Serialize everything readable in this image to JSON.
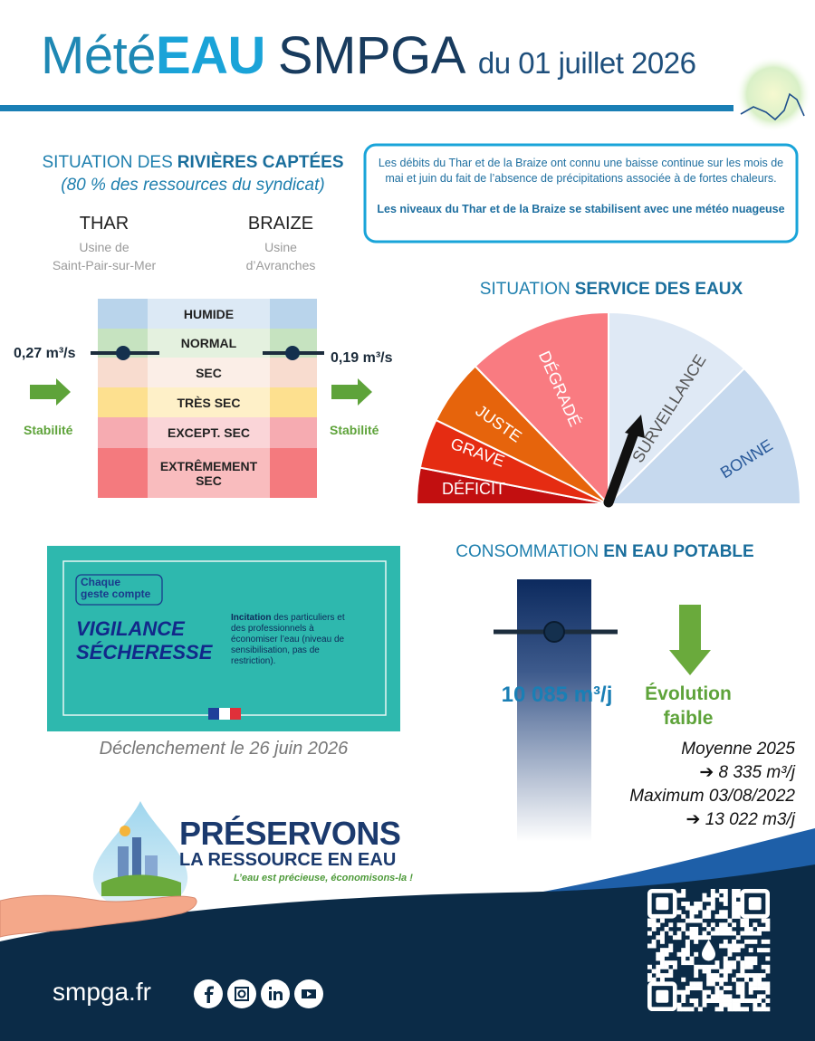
{
  "header": {
    "title_part1": "Mété",
    "title_part2": "EAU",
    "title_part3": "SMPGA",
    "date": "du 01 juillet 2026"
  },
  "rivers": {
    "title_part1": "SITUATION DES",
    "title_part2": "RIVIÈRES CAPTÉES",
    "subtitle": "(80 % des ressources du syndicat)",
    "stations": [
      {
        "name": "THAR",
        "plant": [
          "Usine de",
          "Saint-Pair-sur-Mer"
        ],
        "flow": "0,27 m³/s",
        "trend": "Stabilité"
      },
      {
        "name": "BRAIZE",
        "plant": [
          "Usine",
          "d’Avranches"
        ],
        "flow": "0,19 m³/s",
        "trend": "Stabilité"
      }
    ],
    "levels": [
      "HUMIDE",
      "NORMAL",
      "SEC",
      "TRÈS SEC",
      "EXCEPT. SEC",
      "EXTRÊMEMENT SEC"
    ]
  },
  "info": {
    "paragraph1": "Les débits du Thar et de la Braize ont connu une baisse continue sur les mois de mai et juin du fait de l’absence de précipitations associée à de fortes chaleurs.",
    "paragraph2": "Les niveaux du Thar et de la Braize se stabilisent avec une météo nuageuse"
  },
  "service": {
    "title_part1": "SITUATION",
    "title_part2": "SERVICE DES EAUX",
    "levels": [
      "DÉFICIT",
      "GRAVE",
      "JUSTE",
      "DÉGRADÉ",
      "SURVEILLANCE",
      "BONNE"
    ]
  },
  "consumption": {
    "title_part1": "CONSOMMATION",
    "title_part2": "EN EAU POTABLE",
    "current": "10 085 m³/j",
    "trend": [
      "Évolution",
      "faible"
    ],
    "references": [
      "Moyenne 2025",
      "➔ 8 335 m³/j",
      "Maximum 03/08/2022",
      "➔ 13 022 m3/j"
    ]
  },
  "vigilance": {
    "badge": [
      "Chaque",
      "geste compte"
    ],
    "title": [
      "VIGILANCE",
      "SÉCHERESSE"
    ],
    "text_bold": "Incitation",
    "text": "des particuliers et des professionnels à économiser l’eau (niveau de sensibilisation, pas de restriction).",
    "trigger": "Déclenchement le 26 juin 2026"
  },
  "logo": {
    "line1": "PRÉSERVONS",
    "line2": "LA RESSOURCE EN EAU",
    "tagline": "L’eau est précieuse, économisons-la !"
  },
  "footer": {
    "website": "smpga.fr"
  }
}
